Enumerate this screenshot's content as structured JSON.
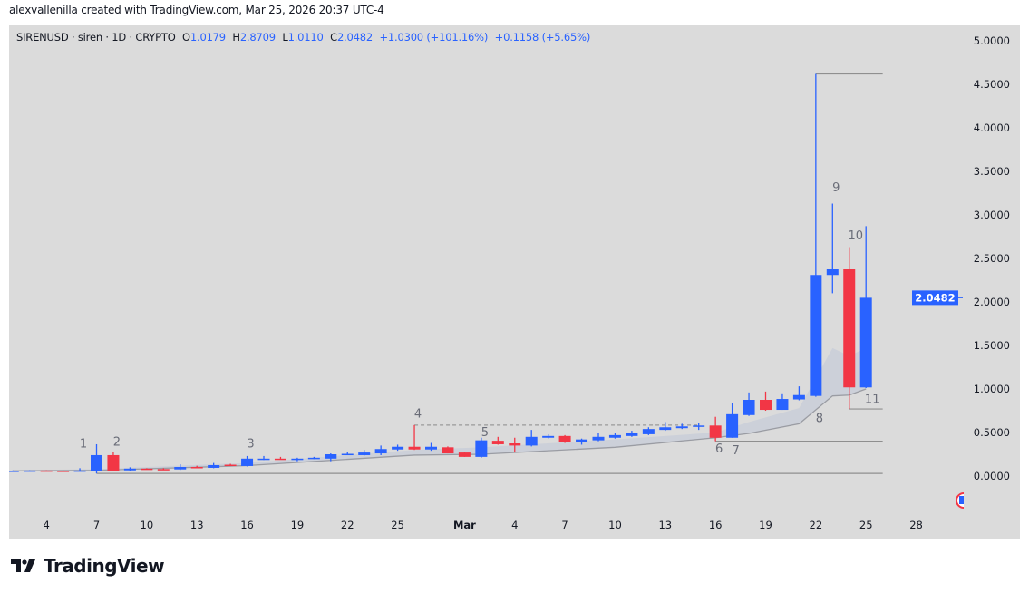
{
  "credit": "alexvallenilla created with TradingView.com, Mar 25, 2026 20:37 UTC-4",
  "legend": {
    "symbol": "SIRENUSD · siren · 1D · CRYPTO",
    "o_label": "O",
    "o": "1.0179",
    "h_label": "H",
    "h": "2.8709",
    "l_label": "L",
    "l": "1.0110",
    "c_label": "C",
    "c": "2.0482",
    "change": "+1.0300 (+101.16%)",
    "change2": "+0.1158 (+5.65%)"
  },
  "brand": "TradingView",
  "colors": {
    "up": "#2962ff",
    "down": "#f23645",
    "background": "#dbdbdb",
    "band": "#c9ced8",
    "line": "#9a9ca3"
  },
  "chart_data": {
    "type": "candlestick",
    "symbol": "SIRENUSD",
    "interval": "1D",
    "ylim": [
      0,
      5
    ],
    "y_ticks": [
      "0.0000",
      "0.5000",
      "1.0000",
      "1.5000",
      "2.0000",
      "2.5000",
      "3.0000",
      "3.5000",
      "4.0000",
      "4.5000",
      "5.0000"
    ],
    "x_ticks": [
      {
        "date": "2026-02-04",
        "label": "4"
      },
      {
        "date": "2026-02-07",
        "label": "7"
      },
      {
        "date": "2026-02-10",
        "label": "10"
      },
      {
        "date": "2026-02-13",
        "label": "13"
      },
      {
        "date": "2026-02-16",
        "label": "16"
      },
      {
        "date": "2026-02-19",
        "label": "19"
      },
      {
        "date": "2026-02-22",
        "label": "22"
      },
      {
        "date": "2026-02-25",
        "label": "25"
      },
      {
        "date": "2026-03-01",
        "label": "Mar"
      },
      {
        "date": "2026-03-04",
        "label": "4"
      },
      {
        "date": "2026-03-07",
        "label": "7"
      },
      {
        "date": "2026-03-10",
        "label": "10"
      },
      {
        "date": "2026-03-13",
        "label": "13"
      },
      {
        "date": "2026-03-16",
        "label": "16"
      },
      {
        "date": "2026-03-19",
        "label": "19"
      },
      {
        "date": "2026-03-22",
        "label": "22"
      },
      {
        "date": "2026-03-25",
        "label": "25"
      },
      {
        "date": "2026-03-28",
        "label": "28"
      }
    ],
    "last_price": "2.0482",
    "candles_columns": [
      "date",
      "open",
      "high",
      "low",
      "close"
    ],
    "candles": [
      [
        "2026-02-02",
        0.06,
        0.065,
        0.055,
        0.062
      ],
      [
        "2026-02-03",
        0.062,
        0.066,
        0.06,
        0.064
      ],
      [
        "2026-02-04",
        0.064,
        0.066,
        0.06,
        0.062
      ],
      [
        "2026-02-05",
        0.062,
        0.064,
        0.06,
        0.061
      ],
      [
        "2026-02-06",
        0.061,
        0.09,
        0.06,
        0.064
      ],
      [
        "2026-02-07",
        0.062,
        0.365,
        0.03,
        0.24
      ],
      [
        "2026-02-08",
        0.24,
        0.28,
        0.055,
        0.06
      ],
      [
        "2026-02-09",
        0.065,
        0.1,
        0.06,
        0.085
      ],
      [
        "2026-02-10",
        0.085,
        0.09,
        0.075,
        0.08
      ],
      [
        "2026-02-11",
        0.08,
        0.09,
        0.075,
        0.078
      ],
      [
        "2026-02-12",
        0.076,
        0.135,
        0.07,
        0.104
      ],
      [
        "2026-02-13",
        0.104,
        0.118,
        0.095,
        0.098
      ],
      [
        "2026-02-14",
        0.094,
        0.15,
        0.09,
        0.125
      ],
      [
        "2026-02-15",
        0.13,
        0.14,
        0.12,
        0.125
      ],
      [
        "2026-02-16",
        0.115,
        0.23,
        0.11,
        0.2
      ],
      [
        "2026-02-17",
        0.198,
        0.23,
        0.185,
        0.2
      ],
      [
        "2026-02-18",
        0.2,
        0.22,
        0.19,
        0.195
      ],
      [
        "2026-02-19",
        0.195,
        0.21,
        0.17,
        0.2
      ],
      [
        "2026-02-20",
        0.2,
        0.22,
        0.195,
        0.21
      ],
      [
        "2026-02-21",
        0.2,
        0.26,
        0.17,
        0.25
      ],
      [
        "2026-02-22",
        0.25,
        0.28,
        0.24,
        0.255
      ],
      [
        "2026-02-23",
        0.24,
        0.3,
        0.235,
        0.27
      ],
      [
        "2026-02-24",
        0.26,
        0.35,
        0.24,
        0.31
      ],
      [
        "2026-02-25",
        0.305,
        0.36,
        0.29,
        0.336
      ],
      [
        "2026-02-26",
        0.336,
        0.585,
        0.3,
        0.305
      ],
      [
        "2026-02-27",
        0.305,
        0.38,
        0.29,
        0.336
      ],
      [
        "2026-02-28",
        0.33,
        0.34,
        0.26,
        0.26
      ],
      [
        "2026-03-01",
        0.27,
        0.28,
        0.22,
        0.22
      ],
      [
        "2026-03-02",
        0.22,
        0.44,
        0.21,
        0.41
      ],
      [
        "2026-03-03",
        0.405,
        0.45,
        0.36,
        0.365
      ],
      [
        "2026-03-04",
        0.375,
        0.44,
        0.27,
        0.35
      ],
      [
        "2026-03-05",
        0.35,
        0.53,
        0.34,
        0.45
      ],
      [
        "2026-03-06",
        0.44,
        0.48,
        0.43,
        0.46
      ],
      [
        "2026-03-07",
        0.46,
        0.47,
        0.38,
        0.39
      ],
      [
        "2026-03-08",
        0.39,
        0.43,
        0.36,
        0.42
      ],
      [
        "2026-03-09",
        0.41,
        0.49,
        0.4,
        0.45
      ],
      [
        "2026-03-10",
        0.44,
        0.49,
        0.43,
        0.47
      ],
      [
        "2026-03-11",
        0.46,
        0.52,
        0.45,
        0.49
      ],
      [
        "2026-03-12",
        0.48,
        0.56,
        0.47,
        0.54
      ],
      [
        "2026-03-13",
        0.53,
        0.62,
        0.52,
        0.56
      ],
      [
        "2026-03-14",
        0.55,
        0.6,
        0.54,
        0.57
      ],
      [
        "2026-03-15",
        0.575,
        0.61,
        0.53,
        0.58
      ],
      [
        "2026-03-16",
        0.58,
        0.68,
        0.4,
        0.44
      ],
      [
        "2026-03-17",
        0.44,
        0.84,
        0.44,
        0.71
      ],
      [
        "2026-03-18",
        0.7,
        0.96,
        0.69,
        0.875
      ],
      [
        "2026-03-19",
        0.875,
        0.97,
        0.75,
        0.76
      ],
      [
        "2026-03-20",
        0.76,
        0.95,
        0.76,
        0.885
      ],
      [
        "2026-03-21",
        0.88,
        1.03,
        0.87,
        0.93
      ],
      [
        "2026-03-22",
        0.92,
        4.62,
        0.91,
        2.31
      ],
      [
        "2026-03-23",
        2.31,
        3.13,
        2.1,
        2.375
      ],
      [
        "2026-03-24",
        2.375,
        2.63,
        0.77,
        1.0182
      ],
      [
        "2026-03-25",
        1.0179,
        2.8709,
        1.011,
        2.0482
      ]
    ],
    "band": {
      "dates": [
        "2026-02-02",
        "2026-02-07",
        "2026-02-16",
        "2026-02-26",
        "2026-03-02",
        "2026-03-10",
        "2026-03-16",
        "2026-03-18",
        "2026-03-21",
        "2026-03-23",
        "2026-03-24",
        "2026-03-25"
      ],
      "lower": [
        0.06,
        0.065,
        0.12,
        0.24,
        0.25,
        0.33,
        0.44,
        0.49,
        0.6,
        0.92,
        0.93,
        1.0
      ],
      "upper": [
        0.065,
        0.08,
        0.15,
        0.3,
        0.33,
        0.42,
        0.5,
        0.62,
        0.78,
        1.47,
        1.38,
        1.47
      ]
    },
    "levels": [
      {
        "from": "2026-02-07",
        "to": "2026-03-26",
        "price": 0.03,
        "style": "solid"
      },
      {
        "from": "2026-03-16",
        "to": "2026-03-26",
        "price": 0.4,
        "style": "solid"
      },
      {
        "from": "2026-03-22",
        "to": "2026-03-26",
        "price": 4.62,
        "style": "solid"
      },
      {
        "from": "2026-03-24",
        "to": "2026-03-26",
        "price": 0.77,
        "style": "solid"
      },
      {
        "from": "2026-02-26",
        "to": "2026-03-15",
        "price": 0.585,
        "style": "dashed"
      }
    ],
    "annotations": [
      {
        "text": "1",
        "date": "2026-02-06",
        "price": 0.33
      },
      {
        "text": "2",
        "date": "2026-02-08",
        "price": 0.35
      },
      {
        "text": "3",
        "date": "2026-02-16",
        "price": 0.33
      },
      {
        "text": "4",
        "date": "2026-02-26",
        "price": 0.67
      },
      {
        "text": "5",
        "date": "2026-03-02",
        "price": 0.46
      },
      {
        "text": "6",
        "date": "2026-03-16",
        "price": 0.27
      },
      {
        "text": "7",
        "date": "2026-03-17",
        "price": 0.25
      },
      {
        "text": "8",
        "date": "2026-03-22",
        "price": 0.62
      },
      {
        "text": "9",
        "date": "2026-03-23",
        "price": 3.27
      },
      {
        "text": "10",
        "date": "2026-03-24",
        "price": 2.72
      },
      {
        "text": "11",
        "date": "2026-03-25",
        "price": 0.84
      }
    ]
  }
}
